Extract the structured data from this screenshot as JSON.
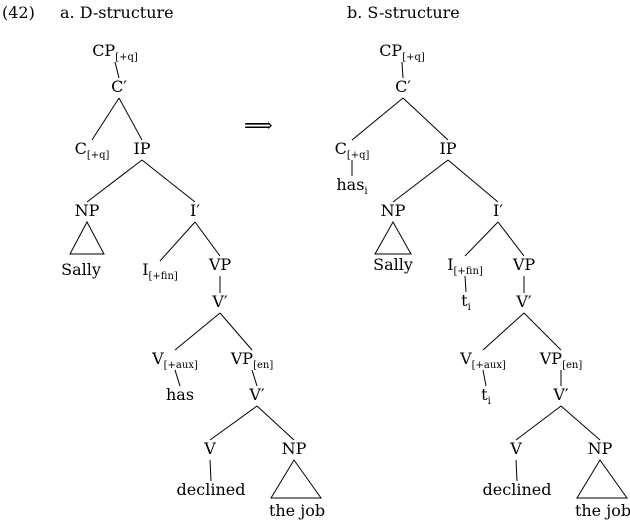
{
  "example_number": "(42)",
  "trees": [
    {
      "heading": "a. D-structure",
      "nodes": {
        "cp": {
          "main": "CP",
          "sub": "[+q]"
        },
        "cbar": {
          "main": "C′"
        },
        "c": {
          "main": "C",
          "sub": "[+q]"
        },
        "ip": {
          "main": "IP"
        },
        "np1": {
          "main": "NP"
        },
        "ibar": {
          "main": "I′"
        },
        "np1_leaf": {
          "main": "Sally"
        },
        "i": {
          "main": "I",
          "sub": "[+fin]"
        },
        "vp1": {
          "main": "VP"
        },
        "vbar1": {
          "main": "V′"
        },
        "vaux": {
          "main": "V",
          "sub": "[+aux]"
        },
        "vp2": {
          "main": "VP",
          "sub": "[en]"
        },
        "vaux_leaf": {
          "main": "has"
        },
        "vbar2": {
          "main": "V′"
        },
        "v": {
          "main": "V"
        },
        "np2": {
          "main": "NP"
        },
        "v_leaf": {
          "main": "declined"
        },
        "np2_leaf": {
          "main": "the job"
        }
      }
    },
    {
      "heading": "b. S-structure",
      "nodes": {
        "cp": {
          "main": "CP",
          "sub": "[+q]"
        },
        "cbar": {
          "main": "C′"
        },
        "c": {
          "main": "C",
          "sub": "[+q]"
        },
        "c_leaf": {
          "main": "has",
          "sub": "i"
        },
        "ip": {
          "main": "IP"
        },
        "np1": {
          "main": "NP"
        },
        "ibar": {
          "main": "I′"
        },
        "np1_leaf": {
          "main": "Sally"
        },
        "i": {
          "main": "I",
          "sub": "[+fin]"
        },
        "i_leaf": {
          "main": "t",
          "sub": "i"
        },
        "vp1": {
          "main": "VP"
        },
        "vbar1": {
          "main": "V′"
        },
        "vaux": {
          "main": "V",
          "sub": "[+aux]"
        },
        "vaux_leaf": {
          "main": "t",
          "sub": "i"
        },
        "vp2": {
          "main": "VP",
          "sub": "[en]"
        },
        "vbar2": {
          "main": "V′"
        },
        "v": {
          "main": "V"
        },
        "np2": {
          "main": "NP"
        },
        "v_leaf": {
          "main": "declined"
        },
        "np2_leaf": {
          "main": "the job"
        }
      }
    }
  ],
  "arrow": "⟹"
}
